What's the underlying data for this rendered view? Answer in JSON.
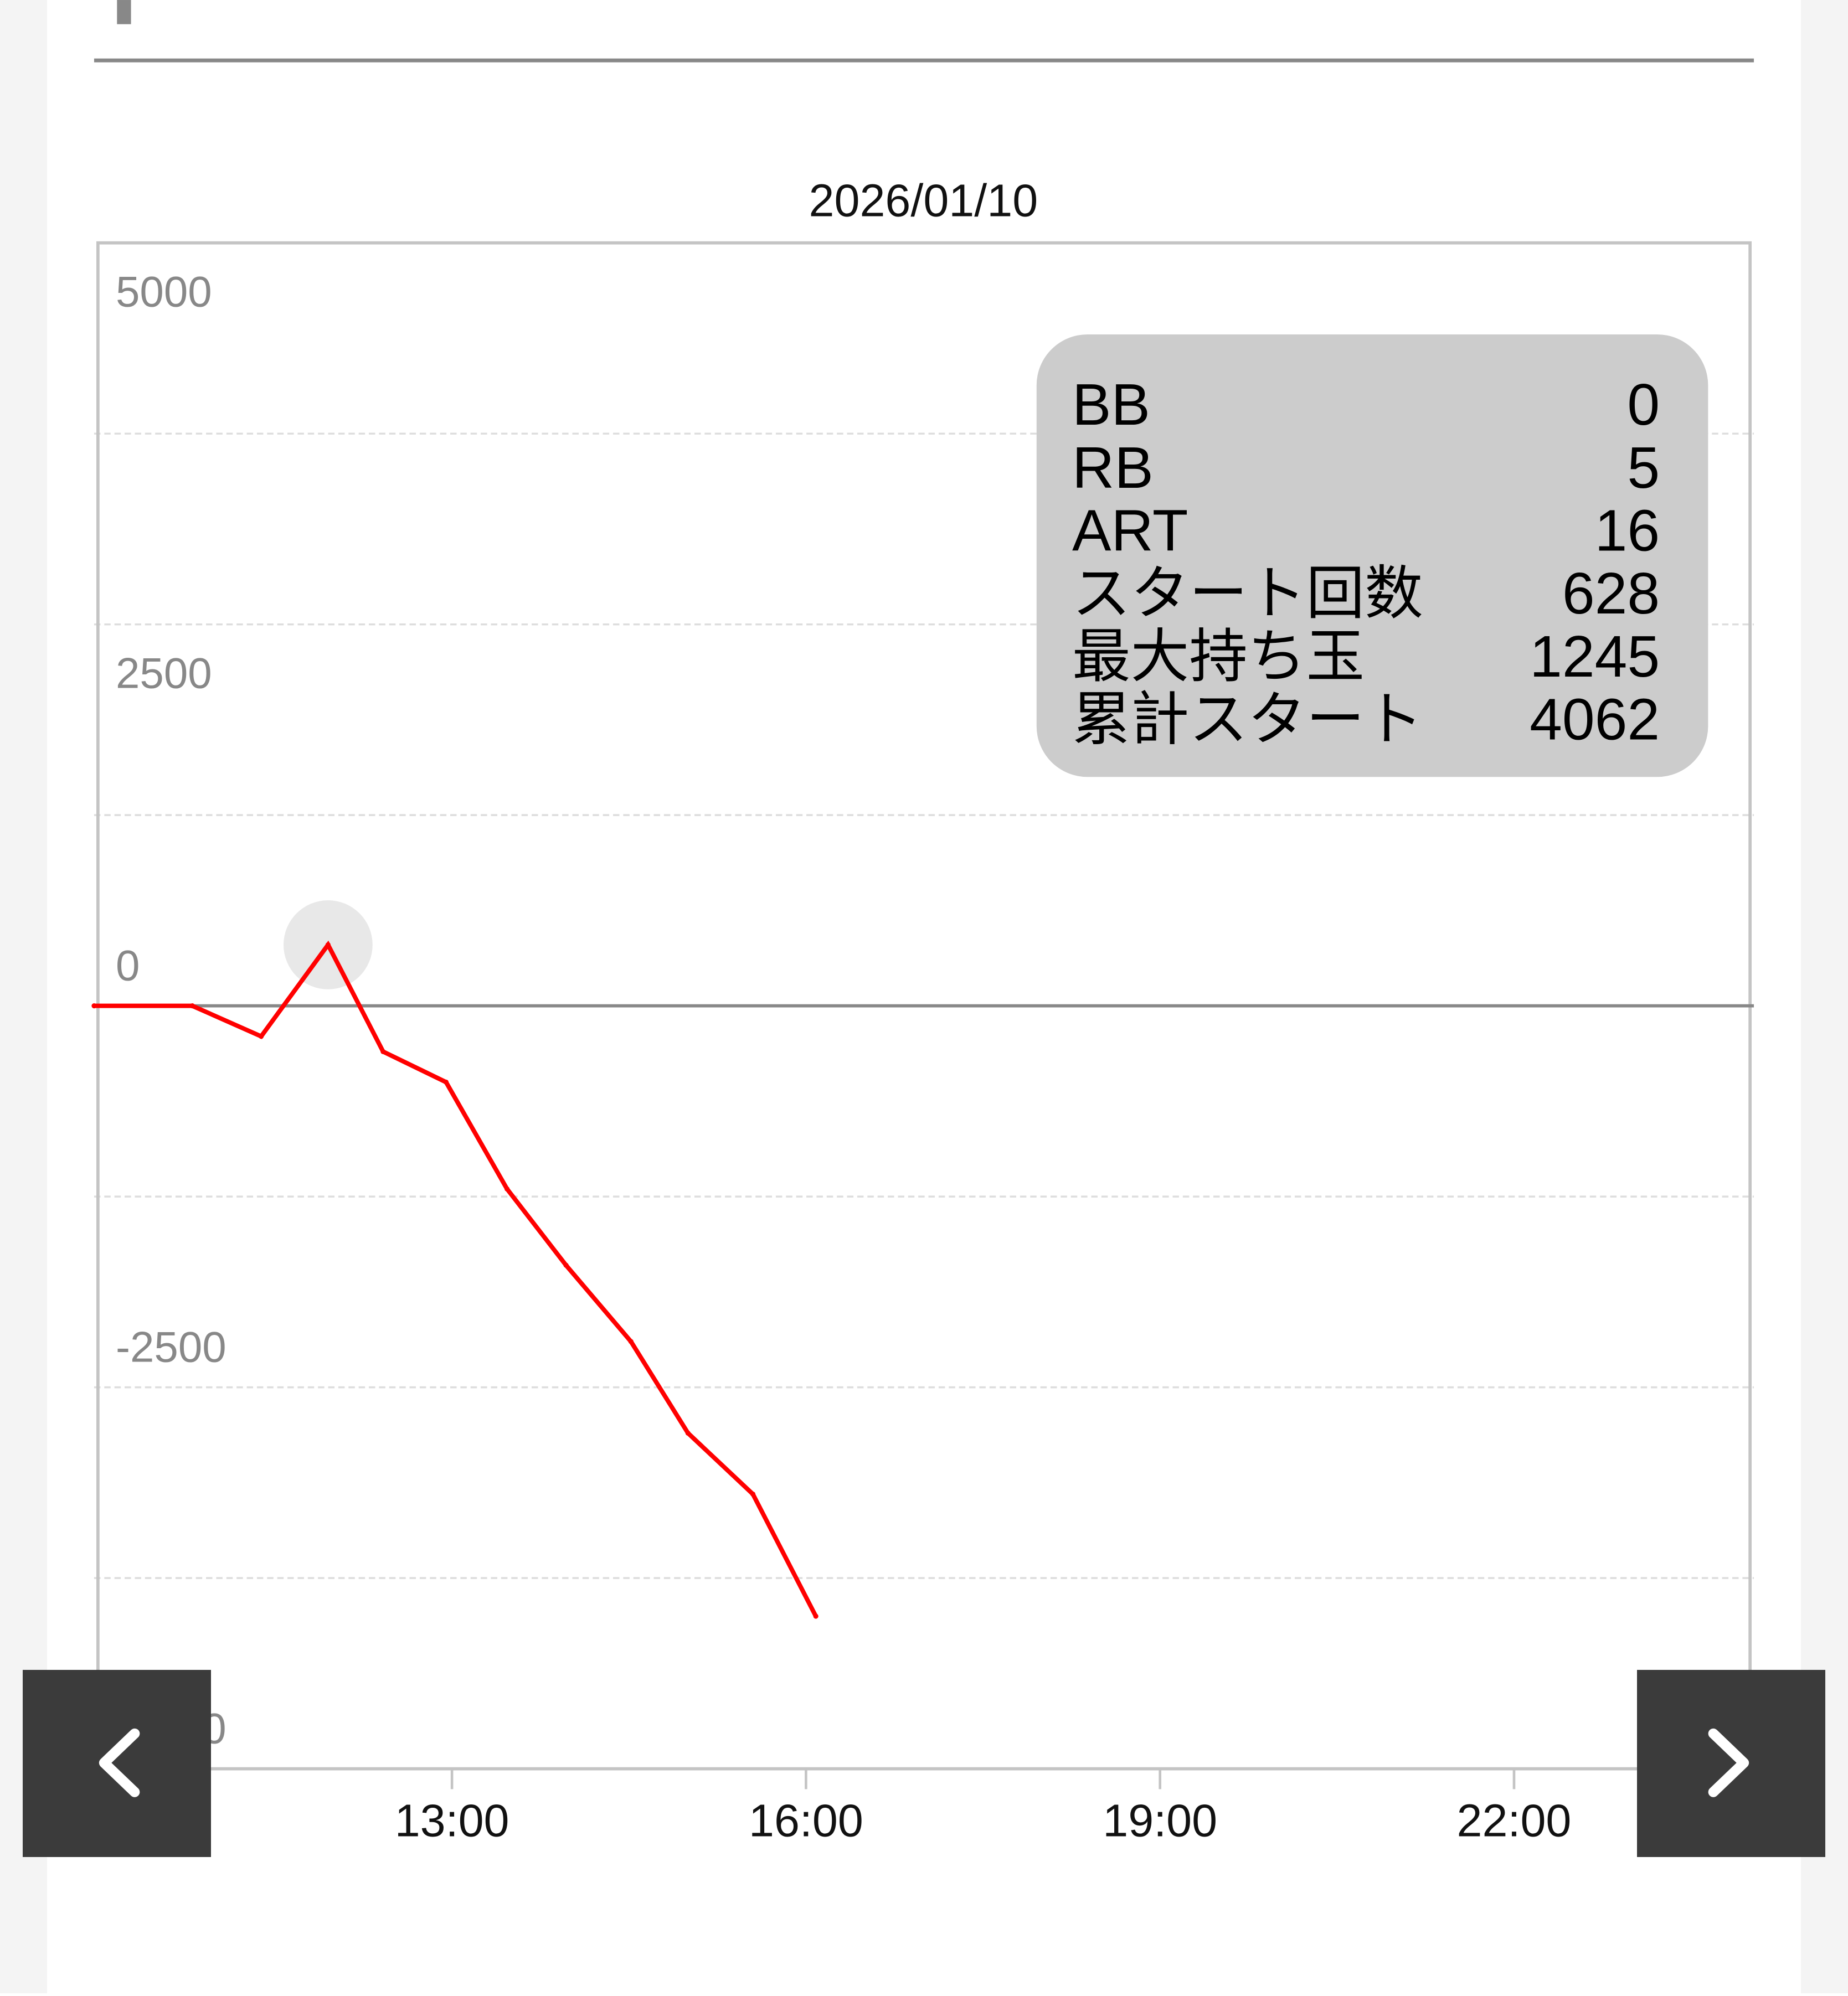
{
  "chart_data": {
    "type": "line",
    "title": "2026/01/10",
    "xlabel": "",
    "ylabel": "",
    "xlim": [
      "10:00",
      "24:00"
    ],
    "ylim": [
      -5000,
      5000
    ],
    "x_ticks": [
      "13:00",
      "16:00",
      "19:00",
      "22:00"
    ],
    "y_ticks": [
      5000,
      2500,
      0,
      -2500,
      -5000
    ],
    "y_tick_labels": [
      "5000",
      "2500",
      "0",
      "-2500",
      "-5000"
    ],
    "grid": true,
    "series": [
      {
        "color": "#ff0000",
        "x": [
          "10:00",
          "10:48",
          "11:23",
          "11:57",
          "12:25",
          "12:57",
          "13:28",
          "13:58",
          "14:31",
          "15:00",
          "15:33",
          "16:05"
        ],
        "values": [
          0,
          0,
          -200,
          400,
          -300,
          -500,
          -1200,
          -1700,
          -2200,
          -2800,
          -3200,
          -4000
        ]
      }
    ],
    "highlighted_point_index": 3,
    "tooltip": {
      "rows": [
        {
          "label": "BB",
          "value": "0"
        },
        {
          "label": "RB",
          "value": "5"
        },
        {
          "label": "ART",
          "value": "16"
        },
        {
          "label": "スタート回数",
          "value": "628"
        },
        {
          "label": "最大持ち玉",
          "value": "1245"
        },
        {
          "label": "累計スタート",
          "value": "4062"
        }
      ],
      "background": "#cccccc"
    }
  },
  "nav": {
    "prev_icon": "chevron-left-icon",
    "next_icon": "chevron-right-icon",
    "button_color": "#3b3b3b"
  }
}
